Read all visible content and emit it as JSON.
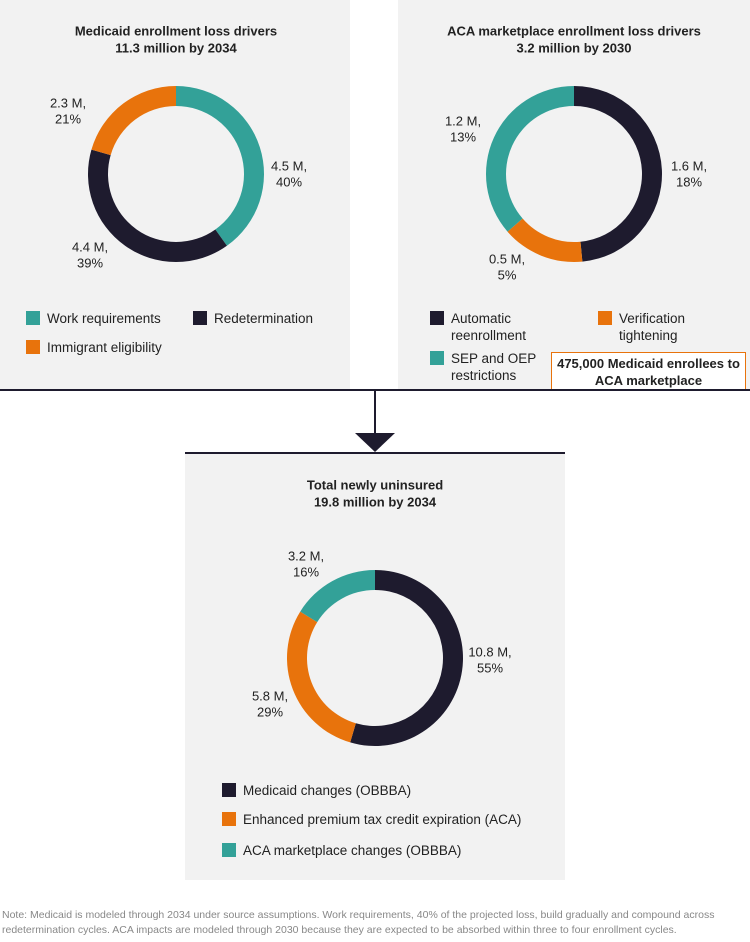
{
  "chart_data": [
    {
      "type": "pie",
      "title": "Medicaid enrollment loss drivers",
      "subtitle": "11.3 million by 2034",
      "categories": [
        "Work requirements",
        "Redetermination",
        "Immigrant eligibility"
      ],
      "values": [
        4.5,
        4.4,
        2.3
      ],
      "value_labels": [
        [
          "4.5 M,",
          "40%"
        ],
        [
          "4.4 M,",
          "39%"
        ],
        [
          "2.3 M,",
          "21%"
        ]
      ],
      "colors": [
        "#33a198",
        "#1e1b2e",
        "#e8730c"
      ]
    },
    {
      "type": "pie",
      "title": "ACA marketplace enrollment loss drivers",
      "subtitle": "3.2 million by 2030",
      "categories": [
        "Automatic reenrollment",
        "Verification tightening",
        "SEP and OEP restrictions"
      ],
      "values": [
        1.6,
        0.5,
        1.2
      ],
      "value_labels": [
        [
          "1.6 M,",
          "18%"
        ],
        [
          "0.5 M,",
          "5%"
        ],
        [
          "1.2 M,",
          "13%"
        ]
      ],
      "colors": [
        "#1e1b2e",
        "#e8730c",
        "#33a198"
      ],
      "annotation": "475,000 Medicaid enrollees to ACA marketplace"
    },
    {
      "type": "pie",
      "title": "Total newly uninsured",
      "subtitle": "19.8 million by 2034",
      "categories": [
        "Medicaid changes (OBBBA)",
        "Enhanced premium tax credit expiration (ACA)",
        "ACA marketplace changes (OBBBA)"
      ],
      "values": [
        10.8,
        5.8,
        3.2
      ],
      "value_labels": [
        [
          "10.8 M,",
          "55%"
        ],
        [
          "5.8 M,",
          "29%"
        ],
        [
          "3.2 M,",
          "16%"
        ]
      ],
      "colors": [
        "#1e1b2e",
        "#e8730c",
        "#33a198"
      ]
    }
  ],
  "note": "Note: Medicaid is modeled through 2034 under source assumptions. Work requirements, 40% of the projected loss, build gradually and compound across redetermination cycles. ACA impacts are modeled through 2030 because they are expected to be absorbed within three to four enrollment cycles."
}
